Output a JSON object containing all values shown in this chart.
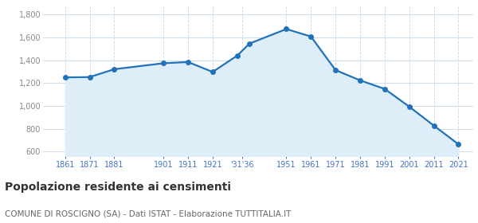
{
  "years": [
    1861,
    1871,
    1881,
    1901,
    1911,
    1921,
    1931,
    1936,
    1951,
    1961,
    1971,
    1981,
    1991,
    2001,
    2011,
    2021
  ],
  "population": [
    1250,
    1253,
    1322,
    1374,
    1385,
    1298,
    1441,
    1547,
    1674,
    1608,
    1314,
    1224,
    1149,
    993,
    827,
    664
  ],
  "line_color": "#2272b9",
  "fill_color": "#ddeef8",
  "marker_color": "#2272b9",
  "background_color": "#ffffff",
  "grid_color_x": "#c8d8e8",
  "grid_color_y": "#c8d8e8",
  "title": "Popolazione residente ai censimenti",
  "subtitle": "COMUNE DI ROSCIGNO (SA) - Dati ISTAT - Elaborazione TUTTITALIA.IT",
  "title_fontsize": 10,
  "subtitle_fontsize": 7.5,
  "ylabel_ticks": [
    600,
    800,
    1000,
    1200,
    1400,
    1600,
    1800
  ],
  "ylim": [
    560,
    1870
  ],
  "xlim": [
    1852,
    2027
  ],
  "title_color": "#333333",
  "subtitle_color": "#666666",
  "tick_label_color_x": "#4472c4",
  "tick_label_color_y": "#888888",
  "x_tick_positions": [
    1861,
    1871,
    1881,
    1901,
    1911,
    1921,
    1933,
    1951,
    1961,
    1971,
    1981,
    1991,
    2001,
    2011,
    2021
  ],
  "x_tick_labels": [
    "1861",
    "1871",
    "1881",
    "1901",
    "1911",
    "1921",
    "'31'36",
    "1951",
    "1961",
    "1971",
    "1981",
    "1991",
    "2001",
    "2011",
    "2021"
  ]
}
